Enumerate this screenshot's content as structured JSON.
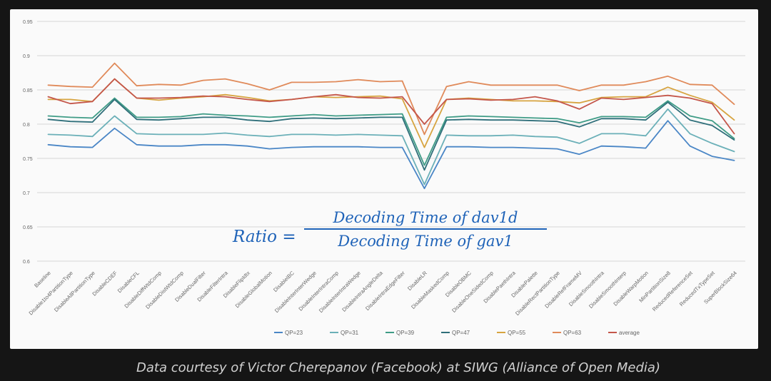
{
  "chart_data": {
    "type": "line",
    "title": "",
    "xlabel": "",
    "ylabel": "",
    "ylim": [
      0.6,
      0.95
    ],
    "yticks": [
      "0.95",
      "0.9",
      "0.85",
      "0.8",
      "0.75",
      "0.7",
      "0.65",
      "0.6"
    ],
    "grid": true,
    "legend_position": "bottom-center",
    "categories": [
      "Baseline",
      "Disable1to4PartitionType",
      "DisableAllPartitionType",
      "DisableCDEF",
      "DisableCFL",
      "DisableDiffWtdComp",
      "DisableDistWtdComp",
      "DisableDualFilter",
      "DisableFilterIntra",
      "DisableFlipIdtx",
      "DisableGlobalMotion",
      "DisableIBC",
      "DisableInterInterWedge",
      "DisableInterIntraComp",
      "DisableInterIntraWedge",
      "DisableIntraAngleDelta",
      "DisableIntraEdgeFilter",
      "DisableLR",
      "DisableMaskedComp",
      "DisableOBMC",
      "DisableOneSidedComp",
      "DisablePaethIntra",
      "DisablePalette",
      "DisableRectPartitionType",
      "DisableRefFrameMV",
      "DisableSmoothIntra",
      "DisableSmoothInterp",
      "DisableWarpMotion",
      "MinPartitionSize8",
      "ReducedReferenceSet",
      "ReducedTxTypeSet",
      "SuperBlockSize64"
    ],
    "series": [
      {
        "name": "QP=23",
        "color": "#4a86c6",
        "values": [
          0.77,
          0.767,
          0.766,
          0.794,
          0.77,
          0.768,
          0.768,
          0.77,
          0.77,
          0.768,
          0.764,
          0.766,
          0.767,
          0.767,
          0.767,
          0.766,
          0.766,
          0.706,
          0.767,
          0.767,
          0.766,
          0.766,
          0.765,
          0.764,
          0.756,
          0.768,
          0.767,
          0.765,
          0.805,
          0.768,
          0.753,
          0.747
        ]
      },
      {
        "name": "QP=31",
        "color": "#6bb0b8",
        "values": [
          0.785,
          0.784,
          0.782,
          0.812,
          0.786,
          0.785,
          0.785,
          0.785,
          0.787,
          0.784,
          0.782,
          0.785,
          0.785,
          0.784,
          0.785,
          0.784,
          0.783,
          0.712,
          0.784,
          0.783,
          0.783,
          0.784,
          0.782,
          0.781,
          0.772,
          0.786,
          0.786,
          0.783,
          0.822,
          0.786,
          0.772,
          0.76
        ]
      },
      {
        "name": "QP=39",
        "color": "#3f9c86",
        "values": [
          0.812,
          0.81,
          0.809,
          0.838,
          0.81,
          0.81,
          0.811,
          0.815,
          0.813,
          0.812,
          0.81,
          0.812,
          0.814,
          0.812,
          0.813,
          0.814,
          0.815,
          0.74,
          0.81,
          0.812,
          0.811,
          0.81,
          0.809,
          0.808,
          0.802,
          0.811,
          0.811,
          0.81,
          0.834,
          0.812,
          0.805,
          0.779
        ]
      },
      {
        "name": "QP=47",
        "color": "#2f6f7a",
        "values": [
          0.807,
          0.804,
          0.803,
          0.836,
          0.807,
          0.806,
          0.808,
          0.81,
          0.81,
          0.806,
          0.804,
          0.808,
          0.809,
          0.808,
          0.809,
          0.81,
          0.81,
          0.733,
          0.806,
          0.807,
          0.806,
          0.806,
          0.805,
          0.804,
          0.796,
          0.808,
          0.808,
          0.806,
          0.832,
          0.806,
          0.798,
          0.777
        ]
      },
      {
        "name": "QP=55",
        "color": "#d7a440",
        "values": [
          0.836,
          0.836,
          0.833,
          0.866,
          0.838,
          0.835,
          0.838,
          0.84,
          0.843,
          0.839,
          0.834,
          0.836,
          0.84,
          0.839,
          0.84,
          0.841,
          0.837,
          0.766,
          0.836,
          0.838,
          0.836,
          0.834,
          0.834,
          0.833,
          0.831,
          0.839,
          0.84,
          0.84,
          0.854,
          0.842,
          0.832,
          0.806
        ]
      },
      {
        "name": "QP=63",
        "color": "#e08a5a",
        "values": [
          0.857,
          0.855,
          0.854,
          0.889,
          0.856,
          0.858,
          0.857,
          0.864,
          0.866,
          0.859,
          0.85,
          0.861,
          0.861,
          0.862,
          0.865,
          0.862,
          0.863,
          0.785,
          0.855,
          0.862,
          0.857,
          0.857,
          0.857,
          0.857,
          0.849,
          0.857,
          0.857,
          0.862,
          0.87,
          0.858,
          0.857,
          0.829
        ]
      },
      {
        "name": "average",
        "color": "#c4564a",
        "values": [
          0.84,
          0.83,
          0.833,
          0.866,
          0.838,
          0.838,
          0.839,
          0.841,
          0.84,
          0.836,
          0.833,
          0.836,
          0.84,
          0.843,
          0.839,
          0.838,
          0.84,
          0.8,
          0.836,
          0.837,
          0.835,
          0.836,
          0.84,
          0.834,
          0.822,
          0.838,
          0.836,
          0.839,
          0.842,
          0.838,
          0.83,
          0.786
        ]
      }
    ]
  },
  "formula": {
    "lhs": "Ratio =",
    "numerator": "Decoding Time of dav1d",
    "denominator": "Decoding Time of gav1"
  },
  "caption": "Data courtesy of Victor Cherepanov (Facebook) at SIWG (Alliance of Open Media)"
}
